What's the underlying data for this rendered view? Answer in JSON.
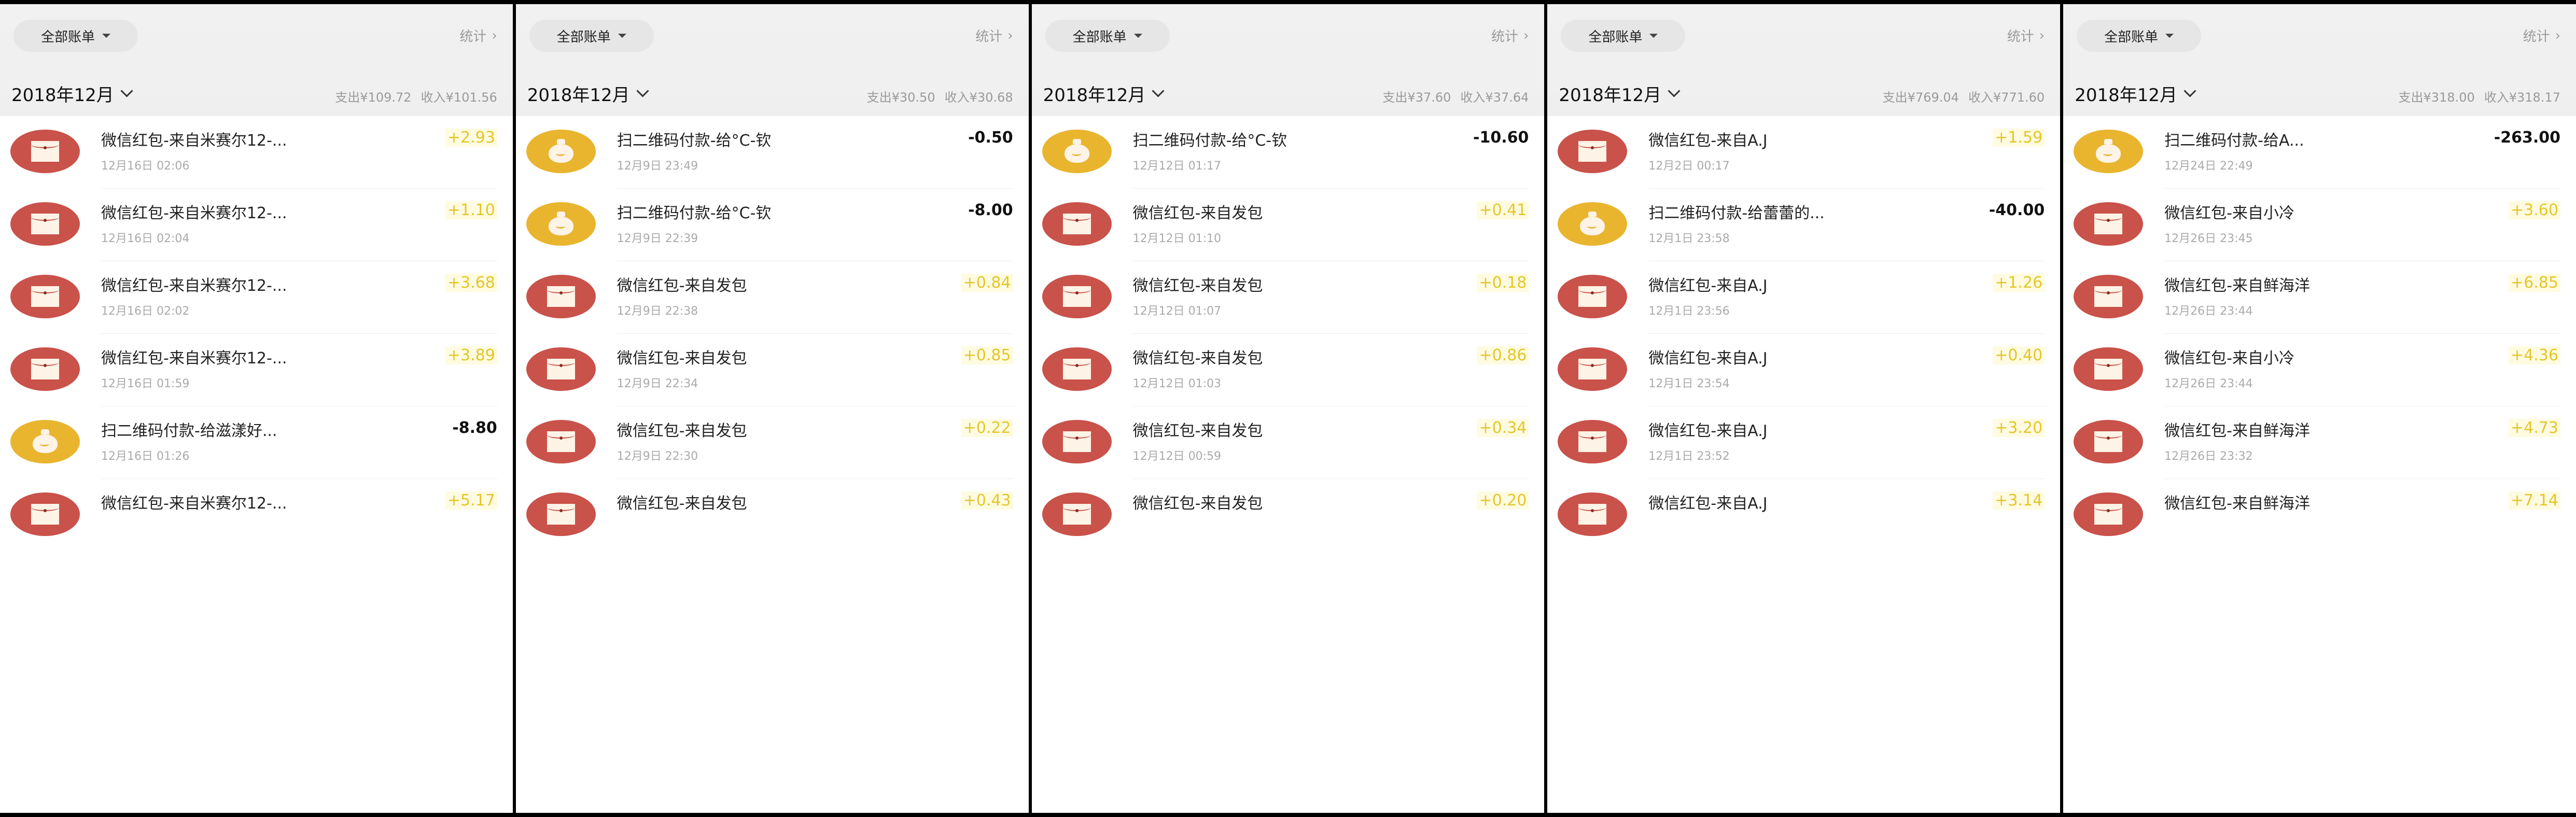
{
  "colors": {
    "income": "#e3c62a",
    "expense": "#111111",
    "redpacket": "#c9524a",
    "qrpay": "#e9b52f",
    "header_bg": "#f1f1f1"
  },
  "panels": [
    {
      "filter": "全部账单",
      "stats": "统计",
      "month": "2018年12月",
      "expense": "支出¥109.72",
      "income": "收入¥101.56",
      "items": [
        {
          "icon": "red-packet-icon",
          "title": "微信红包-来自米赛尔12-...",
          "date": "12月16日 02:06",
          "amount": "+2.93",
          "type": "in"
        },
        {
          "icon": "red-packet-icon",
          "title": "微信红包-来自米赛尔12-...",
          "date": "12月16日 02:04",
          "amount": "+1.10",
          "type": "in"
        },
        {
          "icon": "red-packet-icon",
          "title": "微信红包-来自米赛尔12-...",
          "date": "12月16日 02:02",
          "amount": "+3.68",
          "type": "in"
        },
        {
          "icon": "red-packet-icon",
          "title": "微信红包-来自米赛尔12-...",
          "date": "12月16日 01:59",
          "amount": "+3.89",
          "type": "in"
        },
        {
          "icon": "money-bag-icon",
          "title": "扫二维码付款-给滋漾好...",
          "date": "12月16日 01:26",
          "amount": "-8.80",
          "type": "out"
        },
        {
          "icon": "red-packet-icon",
          "title": "微信红包-来自米赛尔12-...",
          "date": "",
          "amount": "+5.17",
          "type": "in"
        }
      ]
    },
    {
      "filter": "全部账单",
      "stats": "统计",
      "month": "2018年12月",
      "expense": "支出¥30.50",
      "income": "收入¥30.68",
      "items": [
        {
          "icon": "money-bag-icon",
          "title": "扫二维码付款-给°C-钦",
          "date": "12月9日 23:49",
          "amount": "-0.50",
          "type": "out"
        },
        {
          "icon": "money-bag-icon",
          "title": "扫二维码付款-给°C-钦",
          "date": "12月9日 22:39",
          "amount": "-8.00",
          "type": "out"
        },
        {
          "icon": "red-packet-icon",
          "title": "微信红包-来自发包",
          "date": "12月9日 22:38",
          "amount": "+0.84",
          "type": "in"
        },
        {
          "icon": "red-packet-icon",
          "title": "微信红包-来自发包",
          "date": "12月9日 22:34",
          "amount": "+0.85",
          "type": "in"
        },
        {
          "icon": "red-packet-icon",
          "title": "微信红包-来自发包",
          "date": "12月9日 22:30",
          "amount": "+0.22",
          "type": "in"
        },
        {
          "icon": "red-packet-icon",
          "title": "微信红包-来自发包",
          "date": "",
          "amount": "+0.43",
          "type": "in"
        }
      ]
    },
    {
      "filter": "全部账单",
      "stats": "统计",
      "month": "2018年12月",
      "expense": "支出¥37.60",
      "income": "收入¥37.64",
      "items": [
        {
          "icon": "money-bag-icon",
          "title": "扫二维码付款-给°C-钦",
          "date": "12月12日 01:17",
          "amount": "-10.60",
          "type": "out"
        },
        {
          "icon": "red-packet-icon",
          "title": "微信红包-来自发包",
          "date": "12月12日 01:10",
          "amount": "+0.41",
          "type": "in"
        },
        {
          "icon": "red-packet-icon",
          "title": "微信红包-来自发包",
          "date": "12月12日 01:07",
          "amount": "+0.18",
          "type": "in"
        },
        {
          "icon": "red-packet-icon",
          "title": "微信红包-来自发包",
          "date": "12月12日 01:03",
          "amount": "+0.86",
          "type": "in"
        },
        {
          "icon": "red-packet-icon",
          "title": "微信红包-来自发包",
          "date": "12月12日 00:59",
          "amount": "+0.34",
          "type": "in"
        },
        {
          "icon": "red-packet-icon",
          "title": "微信红包-来自发包",
          "date": "",
          "amount": "+0.20",
          "type": "in"
        }
      ]
    },
    {
      "filter": "全部账单",
      "stats": "统计",
      "month": "2018年12月",
      "expense": "支出¥769.04",
      "income": "收入¥771.60",
      "items": [
        {
          "icon": "red-packet-icon",
          "title": "微信红包-来自A.J",
          "date": "12月2日 00:17",
          "amount": "+1.59",
          "type": "in"
        },
        {
          "icon": "money-bag-icon",
          "title": "扫二维码付款-给蕾蕾的...",
          "date": "12月1日 23:58",
          "amount": "-40.00",
          "type": "out"
        },
        {
          "icon": "red-packet-icon",
          "title": "微信红包-来自A.J",
          "date": "12月1日 23:56",
          "amount": "+1.26",
          "type": "in"
        },
        {
          "icon": "red-packet-icon",
          "title": "微信红包-来自A.J",
          "date": "12月1日 23:54",
          "amount": "+0.40",
          "type": "in"
        },
        {
          "icon": "red-packet-icon",
          "title": "微信红包-来自A.J",
          "date": "12月1日 23:52",
          "amount": "+3.20",
          "type": "in"
        },
        {
          "icon": "red-packet-icon",
          "title": "微信红包-来自A.J",
          "date": "",
          "amount": "+3.14",
          "type": "in"
        }
      ]
    },
    {
      "filter": "全部账单",
      "stats": "统计",
      "month": "2018年12月",
      "expense": "支出¥318.00",
      "income": "收入¥318.17",
      "items": [
        {
          "icon": "money-bag-icon",
          "title": "扫二维码付款-给A...",
          "date": "12月24日 22:49",
          "amount": "-263.00",
          "type": "out"
        },
        {
          "icon": "red-packet-icon",
          "title": "微信红包-来自小冷",
          "date": "12月26日 23:45",
          "amount": "+3.60",
          "type": "in"
        },
        {
          "icon": "red-packet-icon",
          "title": "微信红包-来自鲜海洋",
          "date": "12月26日 23:44",
          "amount": "+6.85",
          "type": "in"
        },
        {
          "icon": "red-packet-icon",
          "title": "微信红包-来自小冷",
          "date": "12月26日 23:44",
          "amount": "+4.36",
          "type": "in"
        },
        {
          "icon": "red-packet-icon",
          "title": "微信红包-来自鲜海洋",
          "date": "12月26日 23:32",
          "amount": "+4.73",
          "type": "in"
        },
        {
          "icon": "red-packet-icon",
          "title": "微信红包-来自鲜海洋",
          "date": "",
          "amount": "+7.14",
          "type": "in"
        }
      ]
    }
  ]
}
